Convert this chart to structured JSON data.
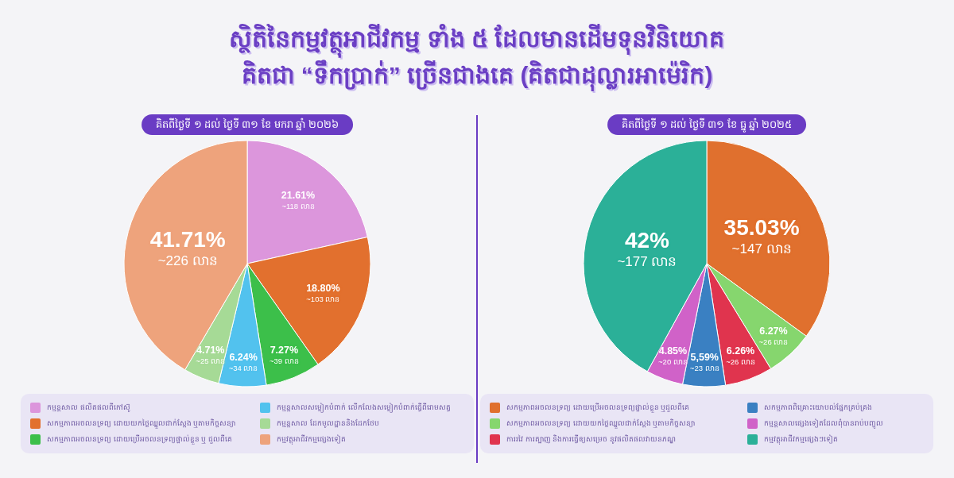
{
  "chart_data": [
    {
      "type": "pie",
      "title": "ស្ថិតិនៃកម្មវត្ថុអាជីវកម្ម ទាំង ៥ ដែលមានដើមទុនវិនិយោគ\nគិតជា “ទឹកប្រាក់” ច្រើនជាងគេ (គិតជាដុល្លារអាម៉េរិក)",
      "subtitle": "គិតពីថ្ងៃទី ១ ដល់ ថ្ងៃទី ៣១ ខែ មករា ឆ្នាំ ២០២៦",
      "categories": [
        "កម្មន្តសាល ផលិតផលពីកៅស៊ូ",
        "សកម្មភាពអចលនទ្រព្យ ដោយយកថ្លៃឈ្នួលជាក់ស្តែង ឬតាមកិច្ចសន្យា",
        "សកម្មភាពអចលនទ្រព្យ ដោយប្រើអចលនទ្រព្យផ្ទាល់ខ្លួន ឬ ជួលពីគេ",
        "កម្មន្តសាលសម្លៀកបំពាក់ លើកលែងសម្លៀកបំពាក់ធ្វើពីរោមសត្វ",
        "កម្មន្តសាល ដែកមូលដ្ឋាននិងដែកថែប",
        "កម្មវត្ថុអាជីវកម្មផ្សេងទៀត"
      ],
      "values": [
        21.61,
        18.8,
        7.27,
        6.24,
        4.71,
        41.71
      ],
      "value_labels": [
        "21.61%\n~118 លាន",
        "18.80%\n~103 លាន",
        "7.27%\n~39 លាន",
        "6.24%\n~34 លាន",
        "4.71%\n~25 លាន",
        "41.71%\n~226 លាន"
      ],
      "colors": [
        "#dc96dc",
        "#e2702e",
        "#3cbf4a",
        "#52c2ee",
        "#a6da96",
        "#eea37c"
      ],
      "legend": "bottom"
    },
    {
      "type": "pie",
      "subtitle": "គិតពីថ្ងៃទី ១ ដល់ ថ្ងៃទី ៣១ ខែ ធ្នូ ឆ្នាំ ២០២៥",
      "categories": [
        "សកម្មភាពអចលនទ្រព្យ ដោយប្រើអចលនទ្រព្យផ្ទាល់ខ្លួន ឬជួលពីគេ",
        "សកម្មភាពអចលនទ្រព្យ ដោយយកថ្លៃឈ្នួលជាក់ស្តែង ឬតាមកិច្ចសន្យា",
        "ការរវៃ ការត្បាញ និងការធ្វើឲ្យសម្រេច នូវផលិតផលវាយនភណ្ឌ",
        "សកម្មភាពពិគ្រោះយោបល់ផ្នែកគ្រប់គ្រង",
        "កម្មន្តសាលផ្សេងទៀតដែលពុំបានរាប់បញ្ចូល",
        "កម្មវត្ថុអាជីវកម្មផ្សេងៗទៀត"
      ],
      "values": [
        35.03,
        6.27,
        6.26,
        5.59,
        4.85,
        42
      ],
      "value_labels": [
        "35.03%\n~147 លាន",
        "6.27%\n~26 លាន",
        "6.26%\n~26 លាន",
        "5,59%\n~23 លាន",
        "4.85%\n~20 លាន",
        "42%\n~177 លាន"
      ],
      "colors": [
        "#e0702e",
        "#86d66e",
        "#e0344e",
        "#3a80c2",
        "#d062c8",
        "#2bb098"
      ],
      "legend": "bottom"
    }
  ]
}
